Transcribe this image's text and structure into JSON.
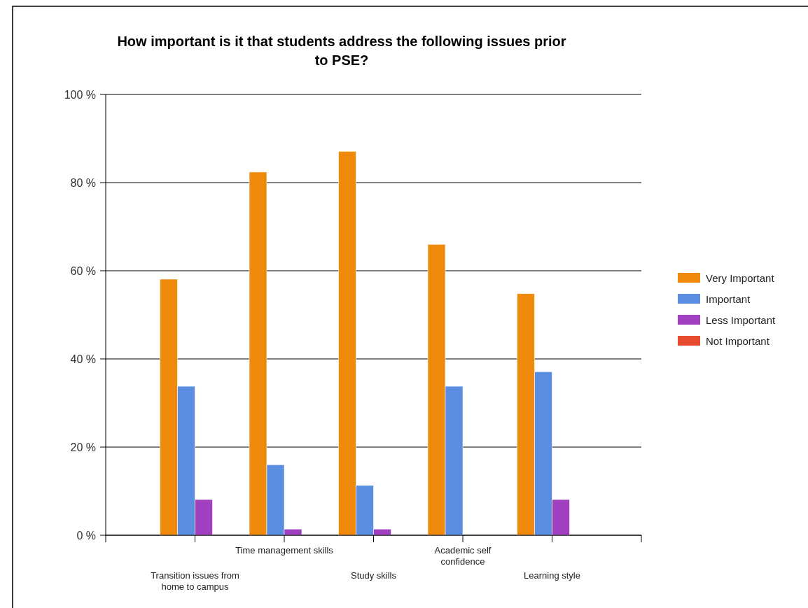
{
  "chart_data": {
    "type": "bar",
    "title": "How important is it that students address the following  issues prior to PSE?",
    "categories": [
      "Transition issues from home to campus",
      "Time management skills",
      "Study skills",
      "Academic self confidence",
      "Learning style"
    ],
    "series": [
      {
        "name": "Very Important",
        "color": "#f08a0c",
        "values": [
          58.1,
          82.4,
          87.1,
          66.0,
          54.8
        ]
      },
      {
        "name": "Important",
        "color": "#5b8de0",
        "values": [
          33.8,
          16.0,
          11.3,
          33.8,
          37.1
        ]
      },
      {
        "name": "Less Important",
        "color": "#a040c0",
        "values": [
          8.1,
          1.4,
          1.4,
          0,
          8.1
        ]
      },
      {
        "name": "Not Important",
        "color": "#e84c30",
        "values": [
          0,
          0,
          0,
          0,
          0
        ]
      }
    ],
    "ylim": [
      0,
      100
    ],
    "yticks": [
      {
        "value": 0,
        "label": "0 %"
      },
      {
        "value": 20,
        "label": "20 %"
      },
      {
        "value": 40,
        "label": "40 %"
      },
      {
        "value": 60,
        "label": "60 %"
      },
      {
        "value": 80,
        "label": "80 %"
      },
      {
        "value": 100,
        "label": "100 %"
      }
    ],
    "grid": "y",
    "legend": "right"
  }
}
